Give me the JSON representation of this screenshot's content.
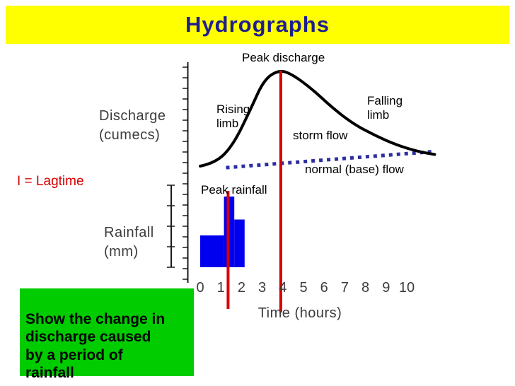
{
  "title": "Hydrographs",
  "colors": {
    "banner_bg": "#FFFF00",
    "title_text": "#1E1E8F",
    "accent_red": "#D90000",
    "rain_bar_blue": "#0000EE",
    "baseflow_blue": "#2E2EA0",
    "caption_bg": "#00CC00",
    "axis_text": "#3C3C3C",
    "curve_black": "#000000"
  },
  "labels": {
    "peak_discharge": "Peak discharge",
    "rising_limb": "Rising\nlimb",
    "falling_limb": "Falling\nlimb",
    "storm_flow": "storm flow",
    "normal_base_flow": "normal (base) flow",
    "peak_rainfall": "Peak rainfall",
    "lagtime": "I = Lagtime",
    "discharge_axis": "Discharge\n(cumecs)",
    "rainfall_axis": "Rainfall\n(mm)",
    "time_axis": "Time (hours)"
  },
  "caption": {
    "text": "Show the change in\ndischarge caused\nby a period of\nrainfall"
  },
  "chart_data": {
    "type": "line",
    "title": "Storm hydrograph",
    "xlabel": "Time (hours)",
    "ylabel": "Discharge (cumecs)",
    "ylabel_secondary": "Rainfall (mm)",
    "x_ticks": [
      0,
      1,
      2,
      3,
      4,
      5,
      6,
      7,
      8,
      9,
      10
    ],
    "x_range_hours": [
      0,
      10
    ],
    "y_scale_note": "no numeric y-axis labels shown; discharge values are relative units",
    "annotations": [
      "Peak discharge",
      "Rising limb",
      "Falling limb",
      "storm flow",
      "normal (base) flow",
      "Peak rainfall",
      "I = Lagtime"
    ],
    "peak_rainfall_time_hours": 1.35,
    "peak_discharge_time_hours": 3.9,
    "discharge_curve": [
      {
        "t": 0,
        "v": 55
      },
      {
        "t": 0.75,
        "v": 56.5
      },
      {
        "t": 1.6,
        "v": 65
      },
      {
        "t": 2.45,
        "v": 82
      },
      {
        "t": 3.1,
        "v": 96
      },
      {
        "t": 3.85,
        "v": 100.5
      },
      {
        "t": 4.5,
        "v": 98
      },
      {
        "t": 5.4,
        "v": 91.5
      },
      {
        "t": 6.4,
        "v": 82.5
      },
      {
        "t": 7.4,
        "v": 75
      },
      {
        "t": 8.45,
        "v": 69.5
      },
      {
        "t": 9.5,
        "v": 65
      },
      {
        "t": 10.5,
        "v": 62
      },
      {
        "t": 11.35,
        "v": 60.5
      }
    ],
    "baseflow_line": {
      "t0": 1.25,
      "v0": 54.3,
      "t1": 11.2,
      "v1": 61.8
    },
    "rainfall_bars": [
      {
        "t0": 0,
        "t1": 1.15,
        "mm": 18
      },
      {
        "t0": 1.15,
        "t1": 1.65,
        "mm": 40
      },
      {
        "t0": 1.65,
        "t1": 2.15,
        "mm": 27
      }
    ]
  }
}
